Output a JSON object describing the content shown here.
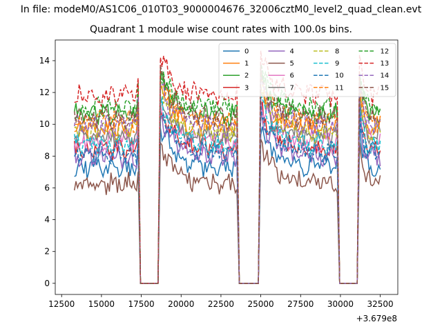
{
  "figure": {
    "suptitle": "In file: modeM0/AS1C06_010T03_9000004676_32006cztM0_level2_quad_clean.evt",
    "title": "Quadrant 1 module wise count rates with 100.0s bins."
  },
  "chart_data": {
    "type": "line",
    "title": "Quadrant 1 module wise count rates with 100.0s bins.",
    "xlabel": "",
    "ylabel": "",
    "x_offset_label": "+3.679e8",
    "xlim": [
      12100,
      33600
    ],
    "ylim": [
      -0.7,
      15.3
    ],
    "xticks": [
      12500,
      15000,
      17500,
      20000,
      22500,
      25000,
      27500,
      30000,
      32500
    ],
    "yticks": [
      0,
      2,
      4,
      6,
      8,
      10,
      12,
      14
    ],
    "grid": false,
    "legend_location": "upper right",
    "legend_columns": 4,
    "segments": [
      {
        "start": 13300,
        "end": 17300,
        "zero_from": 17450,
        "zero_to": 18550
      },
      {
        "start": 18700,
        "end": 23500,
        "zero_from": 23650,
        "zero_to": 24850
      },
      {
        "start": 25000,
        "end": 29800,
        "zero_from": 29950,
        "zero_to": 31050
      },
      {
        "start": 31200,
        "end": 32500
      }
    ],
    "series": [
      {
        "name": "0",
        "color": "#1f77b4",
        "dash": "solid",
        "level": 7.3,
        "seed": 11
      },
      {
        "name": "1",
        "color": "#ff7f0e",
        "dash": "solid",
        "level": 9.8,
        "seed": 12
      },
      {
        "name": "2",
        "color": "#2ca02c",
        "dash": "solid",
        "level": 10.6,
        "seed": 13
      },
      {
        "name": "3",
        "color": "#d62728",
        "dash": "solid",
        "level": 8.4,
        "seed": 14
      },
      {
        "name": "4",
        "color": "#9467bd",
        "dash": "solid",
        "level": 8.0,
        "seed": 15
      },
      {
        "name": "5",
        "color": "#8c564b",
        "dash": "solid",
        "level": 6.3,
        "seed": 16
      },
      {
        "name": "6",
        "color": "#e377c2",
        "dash": "solid",
        "level": 8.9,
        "seed": 17
      },
      {
        "name": "7",
        "color": "#7f7f7f",
        "dash": "solid",
        "level": 9.2,
        "seed": 18
      },
      {
        "name": "8",
        "color": "#bcbd22",
        "dash": "dashed",
        "level": 9.5,
        "seed": 19
      },
      {
        "name": "9",
        "color": "#17becf",
        "dash": "dashed",
        "level": 8.7,
        "seed": 20
      },
      {
        "name": "10",
        "color": "#1f77b4",
        "dash": "dashed",
        "level": 8.2,
        "seed": 21
      },
      {
        "name": "11",
        "color": "#ff7f0e",
        "dash": "dashed",
        "level": 10.2,
        "seed": 22
      },
      {
        "name": "12",
        "color": "#2ca02c",
        "dash": "dashed",
        "level": 11.0,
        "seed": 23
      },
      {
        "name": "13",
        "color": "#d62728",
        "dash": "dashed",
        "level": 11.8,
        "seed": 24
      },
      {
        "name": "14",
        "color": "#9467bd",
        "dash": "dashed",
        "level": 9.9,
        "seed": 25
      },
      {
        "name": "15",
        "color": "#8c564b",
        "dash": "dashed",
        "level": 10.4,
        "seed": 26
      }
    ]
  }
}
